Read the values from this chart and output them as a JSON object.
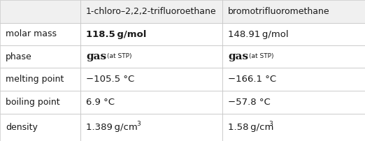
{
  "col_headers": [
    "",
    "1-chloro–2,2,2-trifluoroethane",
    "bromotrifluoromethane"
  ],
  "row_labels": [
    "molar mass",
    "phase",
    "melting point",
    "boiling point",
    "density"
  ],
  "col1_molar": "118.5 g/mol",
  "col2_molar": "148.91 g/mol",
  "col1_phase_main": "gas",
  "col1_phase_sub": "(at STP)",
  "col2_phase_main": "gas",
  "col2_phase_sub": "(at STP)",
  "col1_melt": "−105.5 °C",
  "col2_melt": "−166.1 °C",
  "col1_boil": "6.9 °C",
  "col2_boil": "−57.8 °C",
  "col1_density_main": "1.389 g/cm",
  "col1_density_sup": "3",
  "col2_density_main": "1.58 g/cm",
  "col2_density_sup": "3",
  "bg_color": "#ffffff",
  "header_bg": "#f0f0f0",
  "grid_color": "#c8c8c8",
  "text_color": "#1a1a1a",
  "figsize": [
    5.22,
    2.02
  ],
  "dpi": 100
}
